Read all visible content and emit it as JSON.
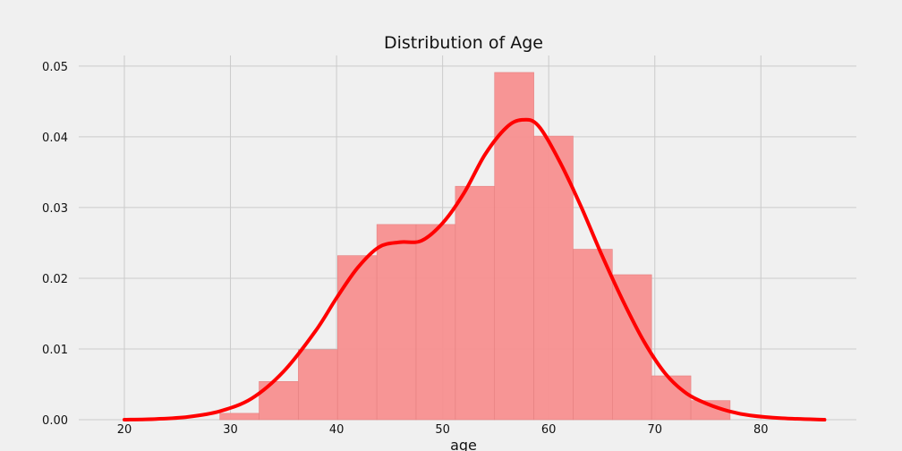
{
  "chart_data": {
    "type": "histogram",
    "title": "Distribution of Age",
    "xlabel": "age",
    "ylabel": "",
    "xlim": [
      15.7,
      89.0
    ],
    "ylim": [
      0,
      0.0515
    ],
    "x_ticks": [
      20,
      30,
      40,
      50,
      60,
      70,
      80
    ],
    "y_ticks": [
      0.0,
      0.01,
      0.02,
      0.03,
      0.04,
      0.05
    ],
    "y_tick_labels": [
      "0.00",
      "0.01",
      "0.02",
      "0.03",
      "0.04",
      "0.05"
    ],
    "grid": true,
    "bins": [
      {
        "x0": 29.0,
        "x1": 32.7,
        "density": 0.0009
      },
      {
        "x0": 32.7,
        "x1": 36.4,
        "density": 0.0054
      },
      {
        "x0": 36.4,
        "x1": 40.1,
        "density": 0.0099
      },
      {
        "x0": 40.1,
        "x1": 43.8,
        "density": 0.0232
      },
      {
        "x0": 43.8,
        "x1": 47.5,
        "density": 0.0276
      },
      {
        "x0": 47.5,
        "x1": 51.2,
        "density": 0.0276
      },
      {
        "x0": 51.2,
        "x1": 54.9,
        "density": 0.033
      },
      {
        "x0": 54.9,
        "x1": 58.6,
        "density": 0.0491
      },
      {
        "x0": 58.6,
        "x1": 62.3,
        "density": 0.0401
      },
      {
        "x0": 62.3,
        "x1": 66.0,
        "density": 0.0241
      },
      {
        "x0": 66.0,
        "x1": 69.7,
        "density": 0.0205
      },
      {
        "x0": 69.7,
        "x1": 73.4,
        "density": 0.0062
      },
      {
        "x0": 73.4,
        "x1": 77.1,
        "density": 0.0027
      }
    ],
    "kde": {
      "x": [
        20,
        23,
        26,
        29,
        32,
        35,
        38,
        40,
        42,
        44,
        46,
        48,
        50,
        52,
        54,
        56,
        57.5,
        59,
        61,
        63,
        65,
        67,
        69,
        71,
        73,
        75,
        77,
        79,
        82,
        86
      ],
      "y": [
        0.0,
        0.0001,
        0.0004,
        0.0012,
        0.003,
        0.0068,
        0.0125,
        0.0172,
        0.0215,
        0.0244,
        0.0251,
        0.0253,
        0.0278,
        0.032,
        0.0375,
        0.0413,
        0.0424,
        0.0416,
        0.0366,
        0.0303,
        0.0233,
        0.0168,
        0.011,
        0.0065,
        0.0037,
        0.0022,
        0.0012,
        0.0006,
        0.0002,
        0.0
      ]
    },
    "colors": {
      "background": "#f0f0f0",
      "grid": "#cbcbcb",
      "bar": "#f78f8f",
      "bar_edge": "#e58080",
      "kde": "#ff0000"
    }
  }
}
